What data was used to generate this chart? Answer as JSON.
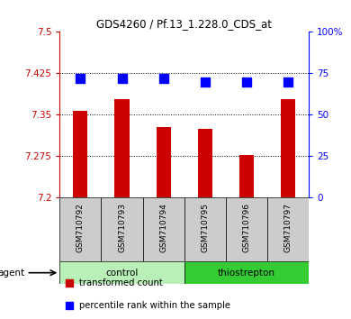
{
  "title": "GDS4260 / Pf.13_1.228.0_CDS_at",
  "samples": [
    "GSM710792",
    "GSM710793",
    "GSM710794",
    "GSM710795",
    "GSM710796",
    "GSM710797"
  ],
  "bar_values": [
    7.357,
    7.378,
    7.328,
    7.325,
    7.278,
    7.378
  ],
  "percentile_values": [
    72,
    72,
    72,
    70,
    70,
    70
  ],
  "ylim_left": [
    7.2,
    7.5
  ],
  "ylim_right": [
    0,
    100
  ],
  "yticks_left": [
    7.2,
    7.275,
    7.35,
    7.425,
    7.5
  ],
  "yticks_right": [
    0,
    25,
    50,
    75,
    100
  ],
  "ytick_labels_left": [
    "7.2",
    "7.275",
    "7.35",
    "7.425",
    "7.5"
  ],
  "ytick_labels_right": [
    "0",
    "25",
    "50",
    "75",
    "100%"
  ],
  "bar_color": "#cc0000",
  "dot_color": "#0000ff",
  "groups": [
    {
      "label": "control",
      "indices": [
        0,
        1,
        2
      ],
      "color": "#b8f0b8"
    },
    {
      "label": "thiostrepton",
      "indices": [
        3,
        4,
        5
      ],
      "color": "#33cc33"
    }
  ],
  "sample_box_color": "#cccccc",
  "agent_label": "agent",
  "legend_items": [
    {
      "color": "#cc0000",
      "marker": "s",
      "label": "transformed count"
    },
    {
      "color": "#0000ff",
      "marker": "s",
      "label": "percentile rank within the sample"
    }
  ],
  "bar_width": 0.35,
  "dot_size": 50
}
